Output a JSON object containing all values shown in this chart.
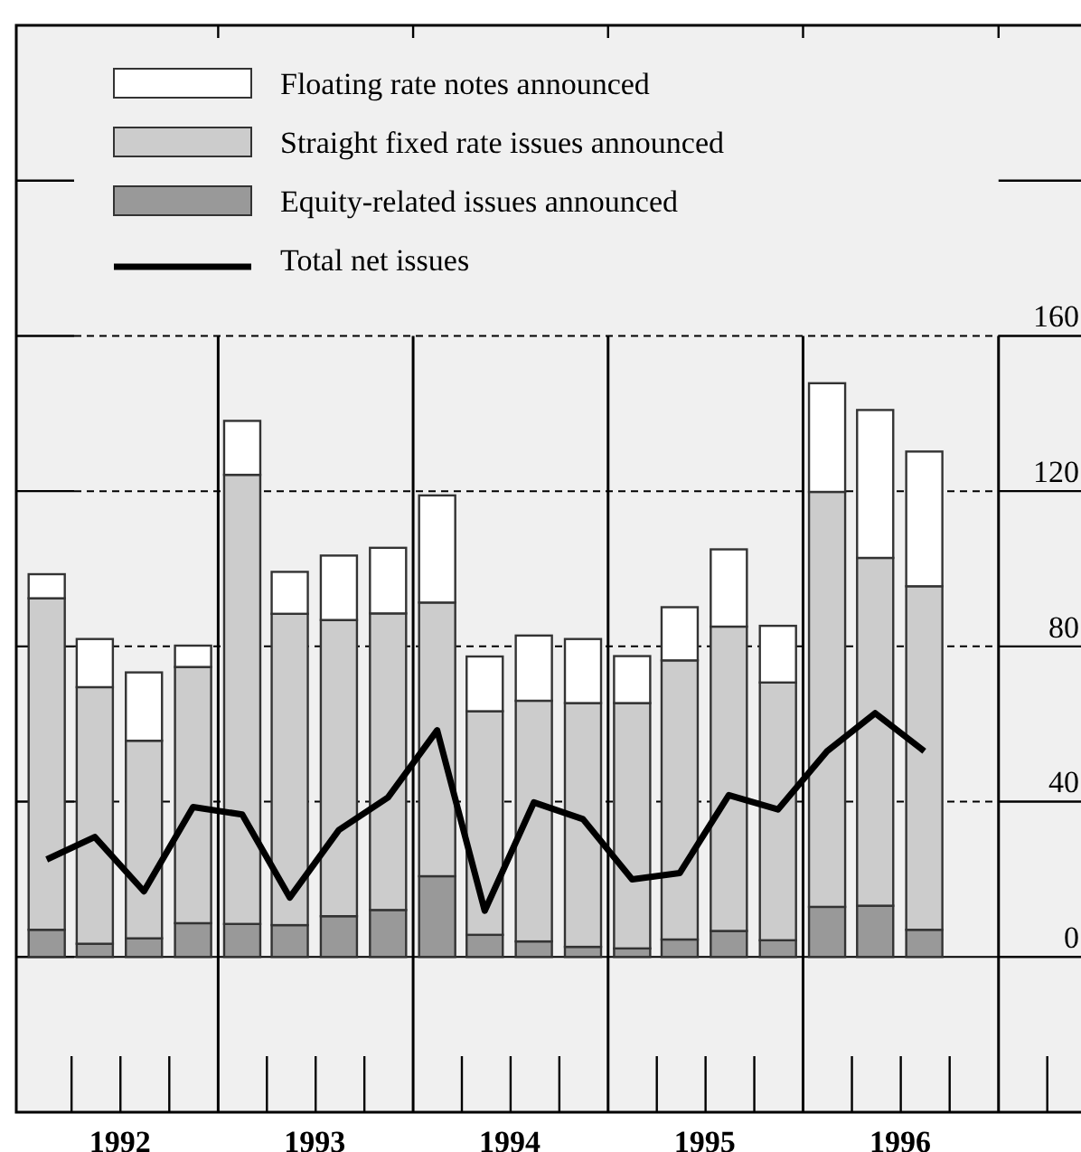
{
  "chart_data": {
    "type": "bar",
    "stacked": true,
    "x": [
      "1992-02-15",
      "1992-05-15",
      "1992-08-15",
      "1992-11-15",
      "1993-02-15",
      "1993-05-15",
      "1993-08-15",
      "1993-11-15",
      "1994-02-15",
      "1994-05-15",
      "1994-08-15",
      "1994-11-15",
      "1995-02-15",
      "1995-05-15",
      "1995-08-15",
      "1995-11-15",
      "1996-02-15",
      "1996-05-15",
      "1996-08-15"
    ],
    "series": [
      {
        "name": "Equity-related issues announced",
        "color": "#999999",
        "values": [
          7.0,
          3.4,
          4.8,
          8.7,
          8.5,
          8.2,
          10.5,
          12.1,
          20.8,
          5.7,
          4.0,
          2.6,
          2.2,
          4.5,
          6.7,
          4.3,
          12.9,
          13.2,
          7.0
        ]
      },
      {
        "name": "Straight fixed rate issues announced",
        "color": "#cccccc",
        "values": [
          85.4,
          66.1,
          50.9,
          66.0,
          115.7,
          80.2,
          76.3,
          76.4,
          70.5,
          57.6,
          62.0,
          62.8,
          63.2,
          71.9,
          78.4,
          66.4,
          106.9,
          89.6,
          88.5
        ]
      },
      {
        "name": "Floating rate notes announced",
        "color": "#ffffff",
        "values": [
          6.2,
          12.4,
          17.6,
          5.5,
          13.9,
          10.8,
          16.6,
          16.9,
          27.6,
          14.1,
          16.8,
          16.5,
          12.1,
          13.7,
          19.9,
          14.6,
          28.0,
          38.1,
          34.7
        ]
      },
      {
        "name": "Total net issues",
        "type": "line",
        "color": "#000000",
        "values": [
          25.1,
          30.9,
          16.9,
          38.6,
          36.7,
          15.3,
          32.7,
          41.1,
          58.4,
          11.9,
          39.8,
          35.5,
          20.0,
          21.6,
          41.7,
          38.0,
          53.0,
          62.8,
          53.0
        ]
      }
    ],
    "xlim": [
      "1991-12-20",
      "1997-06-01"
    ],
    "xticks": [
      {
        "value": "1992-07-01",
        "label": "1992"
      },
      {
        "value": "1993-01-01",
        "label": null
      },
      {
        "value": "1993-07-01",
        "label": "1993"
      },
      {
        "value": "1994-01-01",
        "label": null
      },
      {
        "value": "1994-07-01",
        "label": "1994"
      },
      {
        "value": "1995-01-01",
        "label": null
      },
      {
        "value": "1995-07-01",
        "label": "1995"
      },
      {
        "value": "1996-01-01",
        "label": null
      },
      {
        "value": "1996-07-01",
        "label": "1996"
      },
      {
        "value": "1997-01-01",
        "label": null
      }
    ],
    "ylim": [
      -40,
      240
    ],
    "yticks": [
      0,
      40,
      80,
      120,
      160
    ],
    "grid": true,
    "legend": "top left",
    "line_style": "solid",
    "marker": "none"
  }
}
